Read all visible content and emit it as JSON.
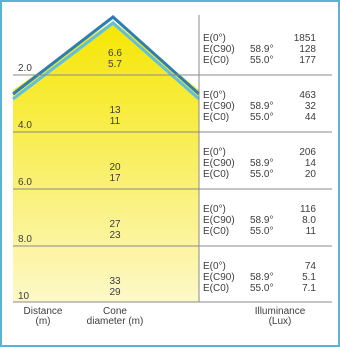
{
  "chart_data": {
    "type": "table",
    "colors": {
      "frame": "#5bb3d3",
      "cone_fill_top": "#f5e600",
      "cone_fill_bottom": "#fdf8c8",
      "row_line": "#8a8a8a",
      "cone_edge": "#2e7fb0"
    },
    "footer": {
      "distance_label": "Distance",
      "distance_unit": "(m)",
      "cone_label": "Cone",
      "cone_unit": "diameter (m)",
      "illuminance_label": "Illuminance",
      "illuminance_unit": "(Lux)"
    },
    "rows": [
      {
        "distance": "2.0",
        "diam_c90": "6.6",
        "diam_c0": "5.7",
        "e0_label": "E(0°)",
        "e0": "1851",
        "ec90_label": "E(C90)",
        "ang_c90": "58.9°",
        "ec90": "128",
        "ec0_label": "E(C0)",
        "ang_c0": "55.0°",
        "ec0": "177"
      },
      {
        "distance": "4.0",
        "diam_c90": "13",
        "diam_c0": "11",
        "e0_label": "E(0°)",
        "e0": "463",
        "ec90_label": "E(C90)",
        "ang_c90": "58.9°",
        "ec90": "32",
        "ec0_label": "E(C0)",
        "ang_c0": "55.0°",
        "ec0": "44"
      },
      {
        "distance": "6.0",
        "diam_c90": "20",
        "diam_c0": "17",
        "e0_label": "E(0°)",
        "e0": "206",
        "ec90_label": "E(C90)",
        "ang_c90": "58.9°",
        "ec90": "14",
        "ec0_label": "E(C0)",
        "ang_c0": "55.0°",
        "ec0": "20"
      },
      {
        "distance": "8.0",
        "diam_c90": "27",
        "diam_c0": "23",
        "e0_label": "E(0°)",
        "e0": "116",
        "ec90_label": "E(C90)",
        "ang_c90": "58.9°",
        "ec90": "8.0",
        "ec0_label": "E(C0)",
        "ang_c0": "55.0°",
        "ec0": "11"
      },
      {
        "distance": "10",
        "diam_c90": "33",
        "diam_c0": "29",
        "e0_label": "E(0°)",
        "e0": "74",
        "ec90_label": "E(C90)",
        "ang_c90": "58.9°",
        "ec90": "5.1",
        "ec0_label": "E(C0)",
        "ang_c0": "55.0°",
        "ec0": "7.1"
      }
    ]
  }
}
